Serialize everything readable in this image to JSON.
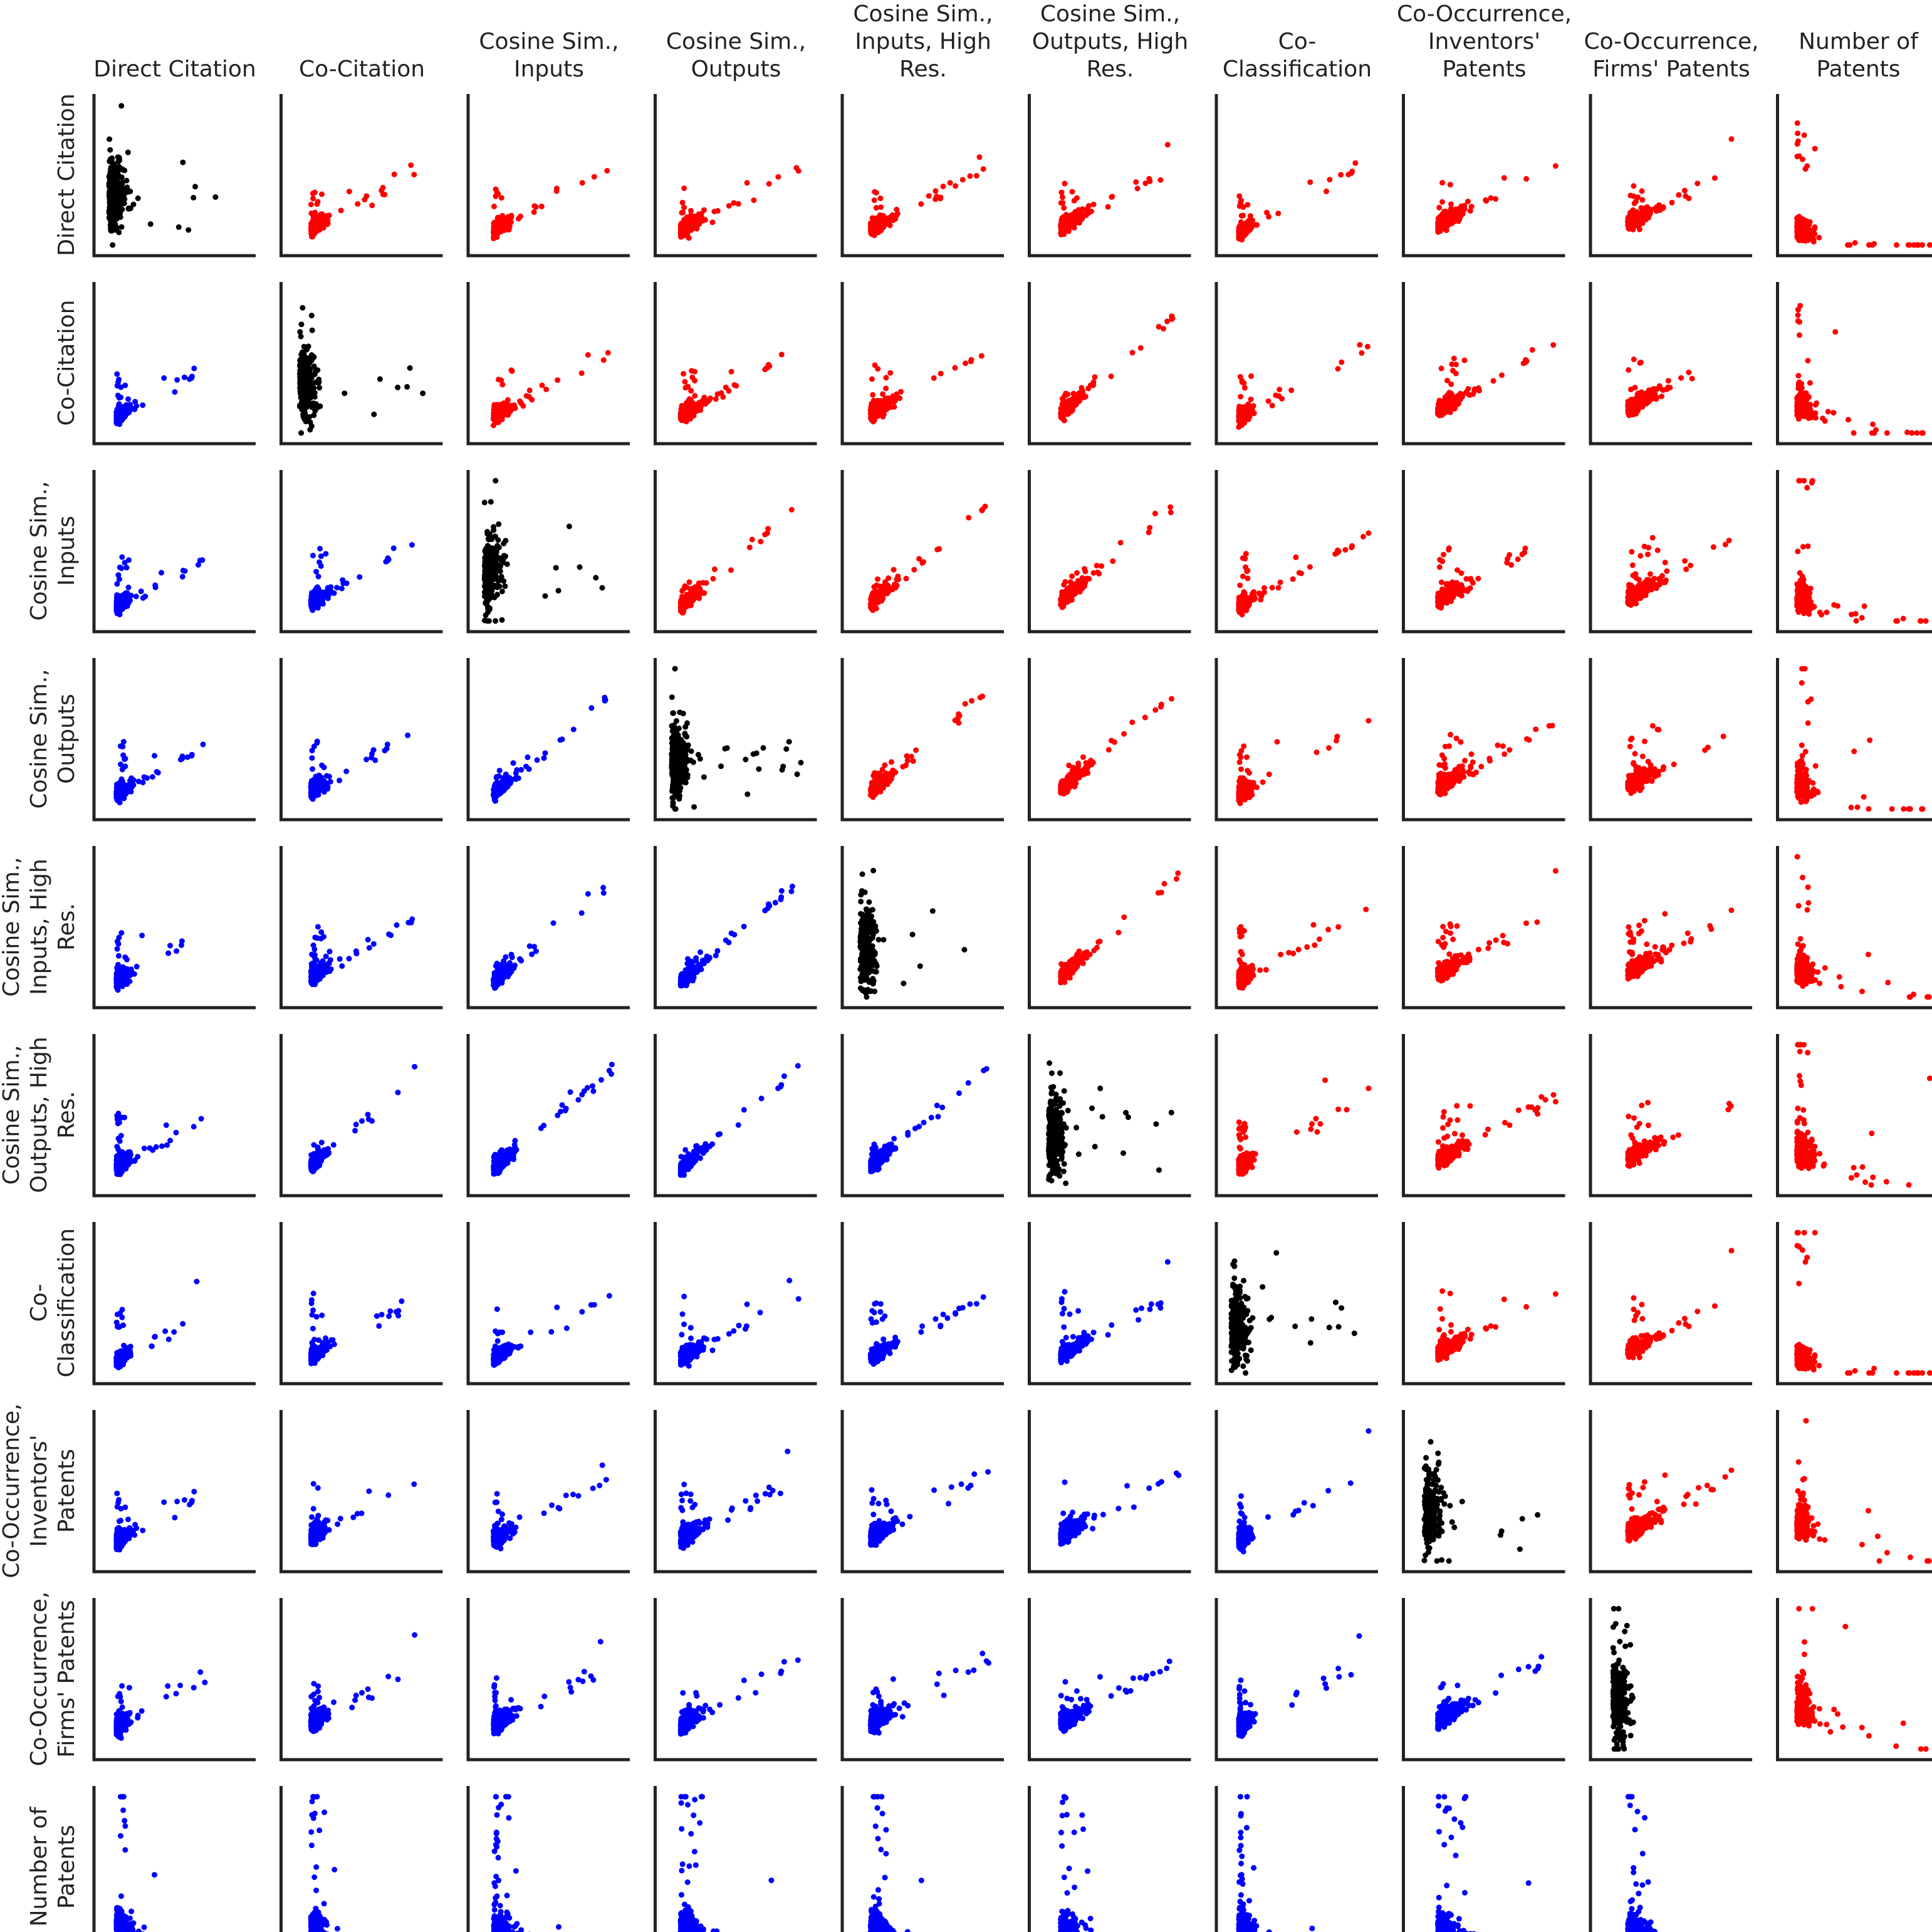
{
  "chart_data": {
    "type": "scatter",
    "layout": "pair-plot-matrix",
    "variables": [
      [
        "Direct Citation"
      ],
      [
        "Co-Citation"
      ],
      [
        "Cosine Sim.,",
        "Inputs"
      ],
      [
        "Cosine Sim.,",
        "Outputs"
      ],
      [
        "Cosine Sim.,",
        "Inputs, High",
        "Res."
      ],
      [
        "Cosine Sim.,",
        "Outputs, High",
        "Res."
      ],
      [
        "Co-",
        "Classification"
      ],
      [
        "Co-Occurrence,",
        "Inventors'",
        "Patents"
      ],
      [
        "Co-Occurrence,",
        "Firms' Patents"
      ],
      [
        "Number of",
        "Patents"
      ]
    ],
    "colors": {
      "upper": "#ff0000",
      "diagonal": "#000000",
      "lower": "#0000ff",
      "axis": "#222222"
    },
    "grid": false,
    "legend": "none",
    "axis_tick_labels": "none",
    "last_cell_empty": true
  }
}
